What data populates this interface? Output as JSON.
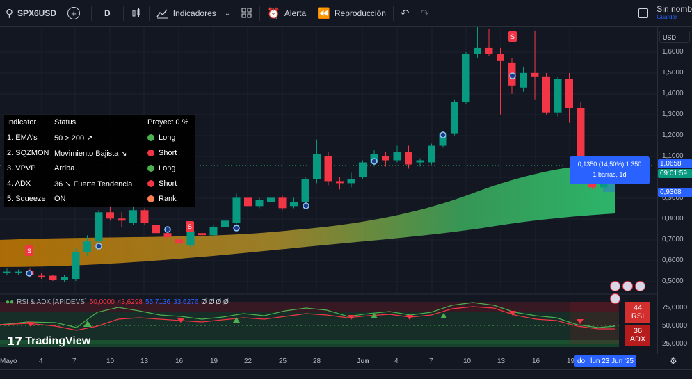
{
  "toolbar": {
    "symbol": "SPX6USD",
    "interval": "D",
    "indicators_label": "Indicadores",
    "alert_label": "Alerta",
    "replay_label": "Reproducción",
    "account_label": "Sin nomb",
    "account_sub": "Guardar"
  },
  "currency": "USD",
  "price_axis": [
    "1,6000",
    "1,5000",
    "1,4000",
    "1,3000",
    "1,2000",
    "1,1000",
    "0,9000",
    "0,8000",
    "0,7000",
    "0,6000",
    "0,5000"
  ],
  "price_tags": {
    "current": "1,0658",
    "countdown": "09:01:59",
    "ema": "0,9308"
  },
  "measure_tooltip": {
    "line1": "0,1350 (14,50%) 1.350",
    "line2": "1 barras, 1d"
  },
  "indicator_table": {
    "headers": [
      "Indicator",
      "Status",
      "Proyect 0 %"
    ],
    "rows": [
      {
        "name": "1. EMA's",
        "status": "50 > 200 ↗",
        "signal": "Long",
        "color": "#4caf50"
      },
      {
        "name": "2. SQZMON",
        "status": "Movimiento Bajista ↘",
        "signal": "Short",
        "color": "#f23645"
      },
      {
        "name": "3. VPVP",
        "status": "Arriba",
        "signal": "Long",
        "color": "#4caf50"
      },
      {
        "name": "4. ADX",
        "status": "36 ↘ Fuerte Tendencia",
        "signal": "Short",
        "color": "#f23645"
      },
      {
        "name": "5. Squeeze",
        "status": "ON",
        "signal": "Rank",
        "color": "#ff7f50"
      }
    ]
  },
  "rsi_legend": {
    "title": "RSI & ADX [APIDEVS]",
    "v1": "50,0000",
    "v2": "43,6298",
    "v3": "55,7136",
    "v4": "33,6276",
    "rest": "Ø Ø Ø Ø"
  },
  "rsi_axis": [
    "75,0000",
    "50,0000",
    "25,0000"
  ],
  "rsi_badge": {
    "rsi_value": "44",
    "rsi_label": "RSI",
    "adx_value": "36",
    "adx_label": "ADX"
  },
  "time_axis": [
    "Mayo",
    "4",
    "7",
    "10",
    "13",
    "16",
    "19",
    "22",
    "25",
    "28",
    "Jun",
    "4",
    "7",
    "10",
    "13",
    "16",
    "19"
  ],
  "time_tag": {
    "day": "do",
    "date": "lun 23 Jun '25"
  },
  "logo": "TradingView",
  "chart_data": {
    "type": "candlestick",
    "ylim": [
      0.45,
      1.72
    ],
    "candles": [
      {
        "o": 0.545,
        "h": 0.56,
        "l": 0.53,
        "c": 0.545
      },
      {
        "o": 0.54,
        "h": 0.555,
        "l": 0.53,
        "c": 0.545
      },
      {
        "o": 0.55,
        "h": 0.56,
        "l": 0.52,
        "c": 0.53
      },
      {
        "o": 0.525,
        "h": 0.54,
        "l": 0.51,
        "c": 0.52
      },
      {
        "o": 0.525,
        "h": 0.53,
        "l": 0.5,
        "c": 0.505
      },
      {
        "o": 0.505,
        "h": 0.53,
        "l": 0.495,
        "c": 0.52
      },
      {
        "o": 0.51,
        "h": 0.66,
        "l": 0.5,
        "c": 0.64
      },
      {
        "o": 0.64,
        "h": 0.72,
        "l": 0.62,
        "c": 0.69
      },
      {
        "o": 0.69,
        "h": 0.84,
        "l": 0.68,
        "c": 0.83
      },
      {
        "o": 0.83,
        "h": 0.86,
        "l": 0.79,
        "c": 0.8
      },
      {
        "o": 0.8,
        "h": 0.83,
        "l": 0.76,
        "c": 0.79
      },
      {
        "o": 0.78,
        "h": 0.86,
        "l": 0.77,
        "c": 0.84
      },
      {
        "o": 0.84,
        "h": 0.85,
        "l": 0.77,
        "c": 0.78
      },
      {
        "o": 0.77,
        "h": 0.79,
        "l": 0.72,
        "c": 0.73
      },
      {
        "o": 0.73,
        "h": 0.75,
        "l": 0.7,
        "c": 0.71
      },
      {
        "o": 0.7,
        "h": 0.72,
        "l": 0.67,
        "c": 0.68
      },
      {
        "o": 0.67,
        "h": 0.76,
        "l": 0.66,
        "c": 0.74
      },
      {
        "o": 0.73,
        "h": 0.76,
        "l": 0.71,
        "c": 0.72
      },
      {
        "o": 0.72,
        "h": 0.77,
        "l": 0.71,
        "c": 0.76
      },
      {
        "o": 0.76,
        "h": 0.8,
        "l": 0.74,
        "c": 0.79
      },
      {
        "o": 0.78,
        "h": 0.92,
        "l": 0.77,
        "c": 0.9
      },
      {
        "o": 0.9,
        "h": 0.91,
        "l": 0.85,
        "c": 0.86
      },
      {
        "o": 0.86,
        "h": 0.9,
        "l": 0.85,
        "c": 0.89
      },
      {
        "o": 0.88,
        "h": 0.91,
        "l": 0.87,
        "c": 0.9
      },
      {
        "o": 0.9,
        "h": 0.91,
        "l": 0.84,
        "c": 0.85
      },
      {
        "o": 0.86,
        "h": 0.9,
        "l": 0.85,
        "c": 0.88
      },
      {
        "o": 0.88,
        "h": 1.0,
        "l": 0.86,
        "c": 0.99
      },
      {
        "o": 0.99,
        "h": 1.18,
        "l": 0.97,
        "c": 1.11
      },
      {
        "o": 1.1,
        "h": 1.12,
        "l": 0.96,
        "c": 0.98
      },
      {
        "o": 0.98,
        "h": 1.0,
        "l": 0.94,
        "c": 0.97
      },
      {
        "o": 0.97,
        "h": 1.02,
        "l": 0.95,
        "c": 0.99
      },
      {
        "o": 1.0,
        "h": 1.08,
        "l": 0.99,
        "c": 1.07
      },
      {
        "o": 1.07,
        "h": 1.13,
        "l": 1.05,
        "c": 1.11
      },
      {
        "o": 1.1,
        "h": 1.12,
        "l": 1.05,
        "c": 1.08
      },
      {
        "o": 1.08,
        "h": 1.15,
        "l": 1.07,
        "c": 1.12
      },
      {
        "o": 1.12,
        "h": 1.15,
        "l": 1.04,
        "c": 1.06
      },
      {
        "o": 1.07,
        "h": 1.09,
        "l": 1.05,
        "c": 1.08
      },
      {
        "o": 1.07,
        "h": 1.16,
        "l": 1.06,
        "c": 1.15
      },
      {
        "o": 1.15,
        "h": 1.22,
        "l": 1.14,
        "c": 1.21
      },
      {
        "o": 1.21,
        "h": 1.37,
        "l": 1.2,
        "c": 1.36
      },
      {
        "o": 1.36,
        "h": 1.6,
        "l": 1.35,
        "c": 1.59
      },
      {
        "o": 1.59,
        "h": 1.72,
        "l": 1.57,
        "c": 1.62
      },
      {
        "o": 1.62,
        "h": 1.71,
        "l": 1.58,
        "c": 1.59
      },
      {
        "o": 1.59,
        "h": 1.62,
        "l": 1.3,
        "c": 1.56
      },
      {
        "o": 1.55,
        "h": 1.57,
        "l": 1.4,
        "c": 1.44
      },
      {
        "o": 1.43,
        "h": 1.53,
        "l": 1.41,
        "c": 1.5
      },
      {
        "o": 1.5,
        "h": 1.7,
        "l": 1.37,
        "c": 1.48
      },
      {
        "o": 1.48,
        "h": 1.5,
        "l": 1.3,
        "c": 1.31
      },
      {
        "o": 1.31,
        "h": 1.48,
        "l": 1.29,
        "c": 1.47
      },
      {
        "o": 1.47,
        "h": 1.5,
        "l": 1.26,
        "c": 1.33
      },
      {
        "o": 1.33,
        "h": 1.36,
        "l": 0.98,
        "c": 1.05
      },
      {
        "o": 1.05,
        "h": 1.06,
        "l": 0.94,
        "c": 0.95
      },
      {
        "o": 0.95,
        "h": 1.07,
        "l": 0.95,
        "c": 1.06
      }
    ],
    "cloud_upper": [
      0.7,
      0.71,
      0.72,
      0.725,
      0.73,
      0.735,
      0.74,
      0.75,
      0.76,
      0.77,
      0.8,
      0.85,
      0.92,
      0.98,
      1.02,
      1.06
    ],
    "cloud_lower": [
      0.6,
      0.605,
      0.61,
      0.62,
      0.63,
      0.64,
      0.66,
      0.68,
      0.7,
      0.71,
      0.73,
      0.76,
      0.79,
      0.81,
      0.825,
      0.835
    ]
  }
}
